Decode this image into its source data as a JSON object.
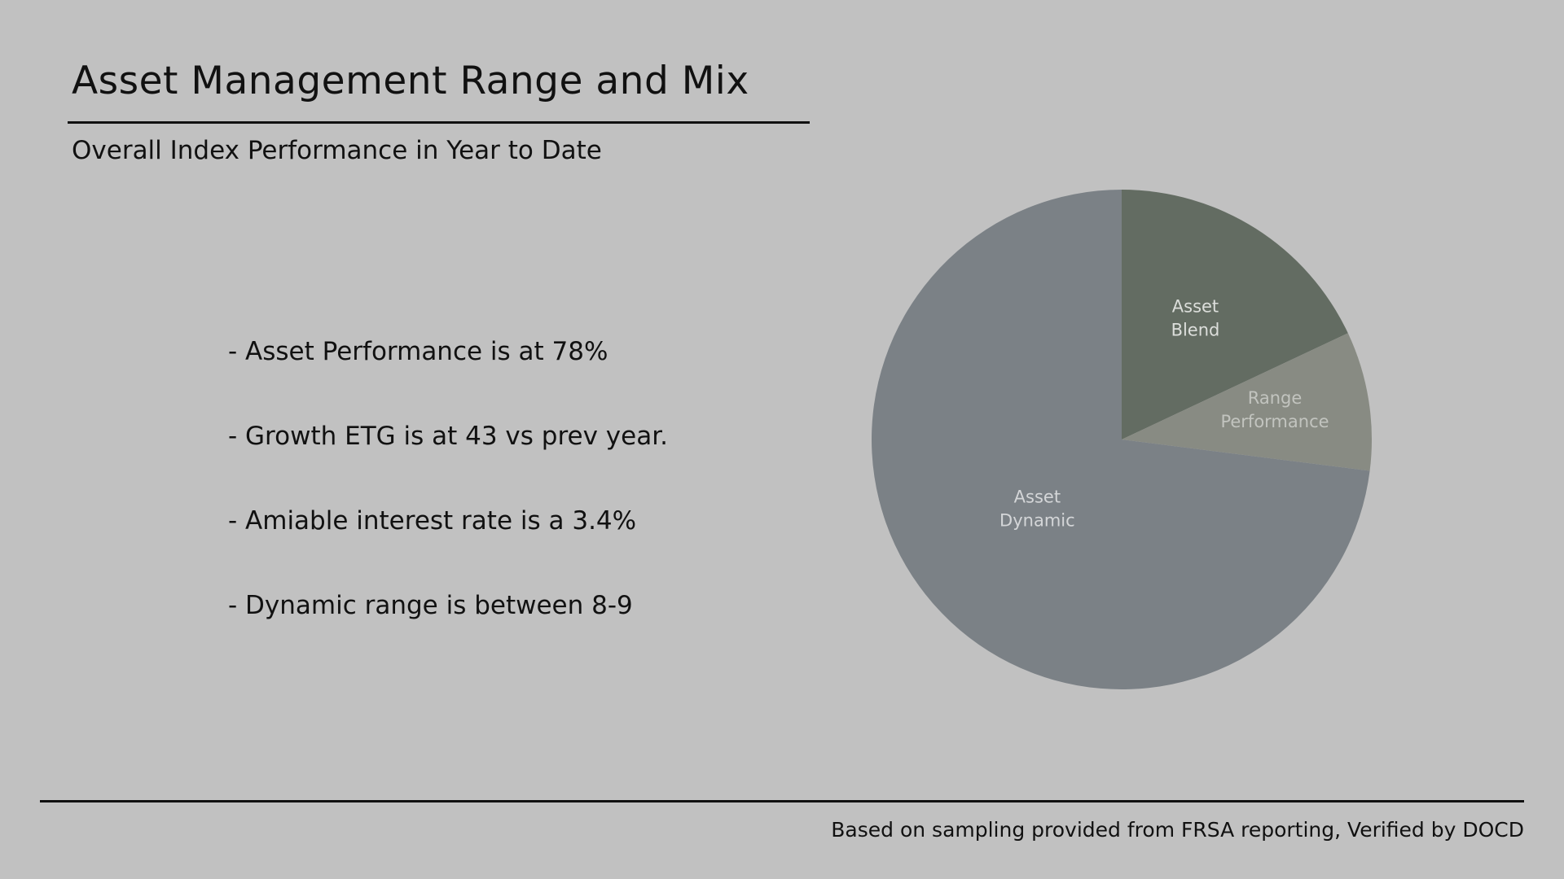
{
  "slide": {
    "title": "Asset Management Range and Mix",
    "subtitle": "Overall Index Performance in Year to Date",
    "bullets": [
      "- Asset Performance is at 78%",
      "- Growth ETG is at 43 vs prev year.",
      "- Amiable interest rate is a 3.4%",
      "- Dynamic range is between 8-9"
    ],
    "footer": "Based on sampling provided from FRSA reporting, Verified by DOCD"
  },
  "colors": {
    "background": "#c1c1c1",
    "asset_blend": "#636c62",
    "range_performance": "#888b83",
    "asset_dynamic": "#7b8186",
    "label_text": "#d4d6d2"
  },
  "chart_data": {
    "type": "pie",
    "title": "",
    "slices": [
      {
        "label_lines": [
          "Asset",
          "Blend"
        ],
        "value": 18,
        "color": "#636c62",
        "label_color": "#dcdedb"
      },
      {
        "label_lines": [
          "Range",
          "Performance"
        ],
        "value": 9,
        "color": "#888b83",
        "label_color": "#c2c4bf"
      },
      {
        "label_lines": [
          "Asset",
          "Dynamic"
        ],
        "value": 73,
        "color": "#7b8186",
        "label_color": "#d4d6d8"
      }
    ]
  }
}
